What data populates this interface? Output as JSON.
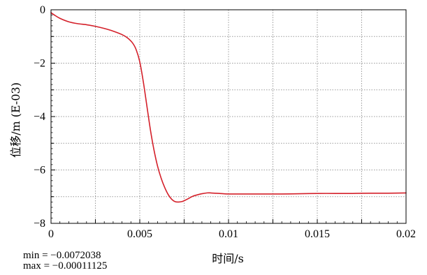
{
  "chart_data": {
    "type": "line",
    "title": "",
    "xlabel": "时间/s",
    "ylabel": "位移/m (E-03)",
    "xlim": [
      0,
      0.02
    ],
    "ylim": [
      -8,
      0
    ],
    "x_ticks": [
      0,
      0.005,
      0.01,
      0.015,
      0.02
    ],
    "x_tick_labels": [
      "0",
      "0.005",
      "0.01",
      "0.015",
      "0.02"
    ],
    "y_ticks": [
      0,
      -2,
      -4,
      -6,
      -8
    ],
    "y_tick_labels": [
      "0",
      "−2",
      "−4",
      "−6",
      "−8"
    ],
    "grid": true,
    "legend": "none",
    "colors": {
      "line": "#d4202a",
      "grid": "#9a9a9a",
      "axis": "#000000"
    },
    "series": [
      {
        "x": [
          0,
          0.0002,
          0.0005,
          0.001,
          0.0015,
          0.002,
          0.0025,
          0.003,
          0.0035,
          0.004,
          0.0043,
          0.0046,
          0.0048,
          0.005,
          0.0052,
          0.0054,
          0.0056,
          0.0058,
          0.006,
          0.0062,
          0.0064,
          0.0066,
          0.0068,
          0.007,
          0.0072,
          0.0074,
          0.0076,
          0.0078,
          0.008,
          0.0082,
          0.0085,
          0.0088,
          0.009,
          0.0095,
          0.01,
          0.011,
          0.012,
          0.013,
          0.014,
          0.015,
          0.016,
          0.017,
          0.018,
          0.019,
          0.02
        ],
        "y": [
          -0.11,
          -0.2,
          -0.32,
          -0.45,
          -0.52,
          -0.56,
          -0.62,
          -0.7,
          -0.8,
          -0.93,
          -1.05,
          -1.25,
          -1.5,
          -1.95,
          -2.7,
          -3.6,
          -4.5,
          -5.25,
          -5.85,
          -6.3,
          -6.65,
          -6.92,
          -7.1,
          -7.19,
          -7.2,
          -7.18,
          -7.12,
          -7.05,
          -6.98,
          -6.94,
          -6.89,
          -6.86,
          -6.86,
          -6.88,
          -6.9,
          -6.9,
          -6.9,
          -6.9,
          -6.89,
          -6.88,
          -6.88,
          -6.88,
          -6.87,
          -6.87,
          -6.86
        ]
      }
    ],
    "annotations": {
      "min": "min = −0.0072038",
      "max": "max = −0.00011125"
    }
  }
}
